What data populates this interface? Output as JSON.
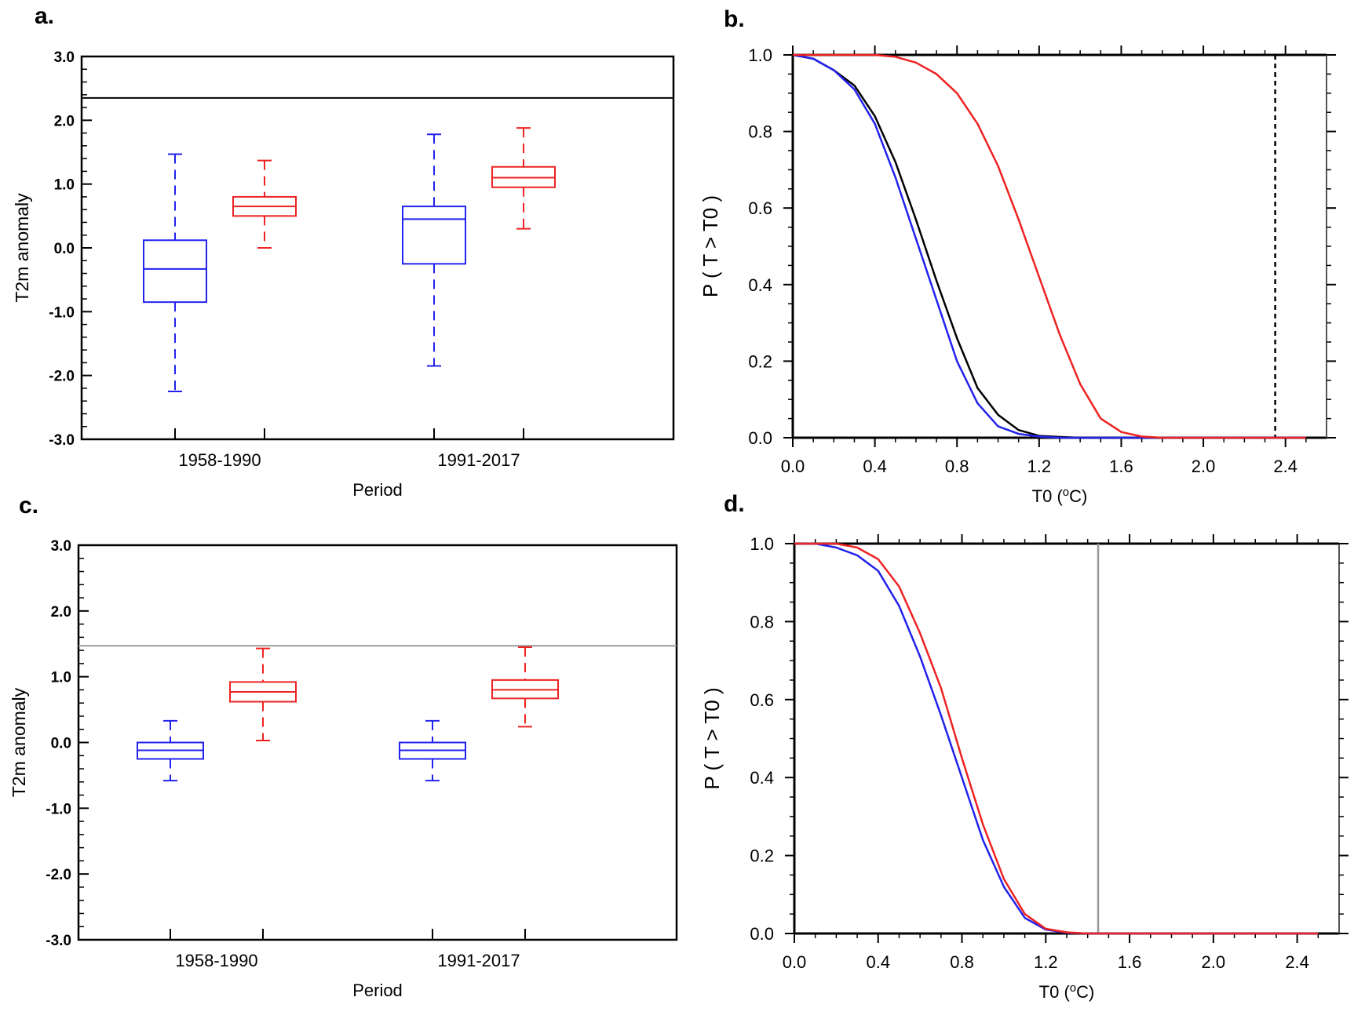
{
  "colors": {
    "blue": "#2222ee",
    "red": "#ee2222",
    "black": "#000000",
    "gray": "#999999"
  },
  "chart_data": [
    {
      "panel_label": "a.",
      "type": "box",
      "xlabel": "Period",
      "ylabel": "T2m anomaly",
      "ylim": [
        -3.0,
        3.0
      ],
      "yticks": [
        -3.0,
        -2.0,
        -1.0,
        0.0,
        1.0,
        2.0,
        3.0
      ],
      "ytick_labels": [
        "-3.0",
        "-2.0",
        "-1.0",
        "0.0",
        "1.0",
        "2.0",
        "3.0"
      ],
      "categories": [
        "1958-1990",
        "1991-2017"
      ],
      "threshold": 2.35,
      "threshold_color": "black",
      "boxes": [
        {
          "category": 0,
          "offset": -0.5,
          "color": "blue",
          "whisker_low": -2.25,
          "q1": -0.85,
          "median": -0.33,
          "q3": 0.12,
          "whisker_high": 1.47
        },
        {
          "category": 0,
          "offset": 0.5,
          "color": "red",
          "whisker_low": 0.0,
          "q1": 0.5,
          "median": 0.65,
          "q3": 0.8,
          "whisker_high": 1.37
        },
        {
          "category": 1,
          "offset": -0.5,
          "color": "blue",
          "whisker_low": -1.85,
          "q1": -0.25,
          "median": 0.45,
          "q3": 0.65,
          "whisker_high": 1.78
        },
        {
          "category": 1,
          "offset": 0.5,
          "color": "red",
          "whisker_low": 0.3,
          "q1": 0.95,
          "median": 1.1,
          "q3": 1.27,
          "whisker_high": 1.88
        }
      ]
    },
    {
      "panel_label": "b.",
      "type": "line",
      "xlabel": "T0 (oC)",
      "ylabel": "P ( T > T0 )",
      "xlim": [
        0.0,
        2.6
      ],
      "ylim": [
        0.0,
        1.0
      ],
      "xticks": [
        0.0,
        0.4,
        0.8,
        1.2,
        1.6,
        2.0,
        2.4
      ],
      "xtick_labels": [
        "0.0",
        "0.4",
        "0.8",
        "1.2",
        "1.6",
        "2.0",
        "2.4"
      ],
      "yticks": [
        0.0,
        0.2,
        0.4,
        0.6,
        0.8,
        1.0
      ],
      "ytick_labels": [
        "0.0",
        "0.2",
        "0.4",
        "0.6",
        "0.8",
        "1.0"
      ],
      "vline": 2.35,
      "vline_color": "black",
      "vline_dashed": true,
      "series": [
        {
          "name": "black",
          "color": "black",
          "x": [
            0.0,
            0.1,
            0.2,
            0.3,
            0.4,
            0.5,
            0.6,
            0.7,
            0.8,
            0.9,
            1.0,
            1.1,
            1.2,
            1.3,
            1.4,
            1.6,
            2.0,
            2.5
          ],
          "y": [
            1.0,
            0.99,
            0.96,
            0.92,
            0.84,
            0.72,
            0.57,
            0.41,
            0.26,
            0.13,
            0.06,
            0.02,
            0.005,
            0.002,
            0.0,
            0.0,
            0.0,
            0.0
          ]
        },
        {
          "name": "blue",
          "color": "blue",
          "x": [
            0.0,
            0.1,
            0.2,
            0.3,
            0.4,
            0.5,
            0.6,
            0.7,
            0.8,
            0.9,
            1.0,
            1.1,
            1.2,
            1.3,
            1.6,
            2.0,
            2.5
          ],
          "y": [
            1.0,
            0.99,
            0.96,
            0.91,
            0.82,
            0.68,
            0.52,
            0.36,
            0.2,
            0.09,
            0.03,
            0.01,
            0.003,
            0.0,
            0.0,
            0.0,
            0.0
          ]
        },
        {
          "name": "red",
          "color": "red",
          "x": [
            0.0,
            0.3,
            0.4,
            0.5,
            0.6,
            0.7,
            0.8,
            0.9,
            1.0,
            1.1,
            1.2,
            1.3,
            1.4,
            1.5,
            1.6,
            1.7,
            1.8,
            2.0,
            2.5
          ],
          "y": [
            1.0,
            1.0,
            1.0,
            0.995,
            0.98,
            0.95,
            0.9,
            0.82,
            0.71,
            0.57,
            0.42,
            0.27,
            0.14,
            0.05,
            0.015,
            0.003,
            0.0,
            0.0,
            0.0
          ]
        }
      ]
    },
    {
      "panel_label": "c.",
      "type": "box",
      "xlabel": "Period",
      "ylabel": "T2m anomaly",
      "ylim": [
        -3.0,
        3.0
      ],
      "yticks": [
        -3.0,
        -2.0,
        -1.0,
        0.0,
        1.0,
        2.0,
        3.0
      ],
      "ytick_labels": [
        "-3.0",
        "-2.0",
        "-1.0",
        "0.0",
        "1.0",
        "2.0",
        "3.0"
      ],
      "categories": [
        "1958-1990",
        "1991-2017"
      ],
      "threshold": 1.47,
      "threshold_color": "gray",
      "boxes": [
        {
          "category": 0,
          "offset": -0.5,
          "color": "blue",
          "whisker_low": -0.58,
          "q1": -0.25,
          "median": -0.12,
          "q3": 0.0,
          "whisker_high": 0.33
        },
        {
          "category": 0,
          "offset": 0.5,
          "color": "red",
          "whisker_low": 0.03,
          "q1": 0.62,
          "median": 0.77,
          "q3": 0.92,
          "whisker_high": 1.43
        },
        {
          "category": 1,
          "offset": -0.5,
          "color": "blue",
          "whisker_low": -0.58,
          "q1": -0.25,
          "median": -0.12,
          "q3": 0.0,
          "whisker_high": 0.33
        },
        {
          "category": 1,
          "offset": 0.5,
          "color": "red",
          "whisker_low": 0.24,
          "q1": 0.67,
          "median": 0.8,
          "q3": 0.95,
          "whisker_high": 1.45
        }
      ]
    },
    {
      "panel_label": "d.",
      "type": "line",
      "xlabel": "T0 (oC)",
      "ylabel": "P ( T > T0 )",
      "xlim": [
        0.0,
        2.6
      ],
      "ylim": [
        0.0,
        1.0
      ],
      "xticks": [
        0.0,
        0.4,
        0.8,
        1.2,
        1.6,
        2.0,
        2.4
      ],
      "xtick_labels": [
        "0.0",
        "0.4",
        "0.8",
        "1.2",
        "1.6",
        "2.0",
        "2.4"
      ],
      "yticks": [
        0.0,
        0.2,
        0.4,
        0.6,
        0.8,
        1.0
      ],
      "ytick_labels": [
        "0.0",
        "0.2",
        "0.4",
        "0.6",
        "0.8",
        "1.0"
      ],
      "vline": 1.45,
      "vline_color": "gray",
      "vline_dashed": false,
      "series": [
        {
          "name": "blue",
          "color": "blue",
          "x": [
            0.0,
            0.1,
            0.2,
            0.3,
            0.4,
            0.5,
            0.6,
            0.7,
            0.8,
            0.9,
            1.0,
            1.1,
            1.2,
            1.3,
            1.4,
            1.6,
            2.0,
            2.5
          ],
          "y": [
            1.0,
            1.0,
            0.99,
            0.97,
            0.93,
            0.84,
            0.71,
            0.56,
            0.4,
            0.24,
            0.12,
            0.04,
            0.01,
            0.002,
            0.0,
            0.0,
            0.0,
            0.0
          ]
        },
        {
          "name": "red",
          "color": "red",
          "x": [
            0.0,
            0.1,
            0.2,
            0.3,
            0.4,
            0.5,
            0.6,
            0.7,
            0.8,
            0.9,
            1.0,
            1.1,
            1.2,
            1.3,
            1.4,
            1.6,
            2.0,
            2.5
          ],
          "y": [
            1.0,
            1.0,
            1.0,
            0.99,
            0.96,
            0.89,
            0.77,
            0.63,
            0.45,
            0.28,
            0.14,
            0.05,
            0.012,
            0.003,
            0.0,
            0.0,
            0.0,
            0.0
          ]
        }
      ]
    }
  ]
}
